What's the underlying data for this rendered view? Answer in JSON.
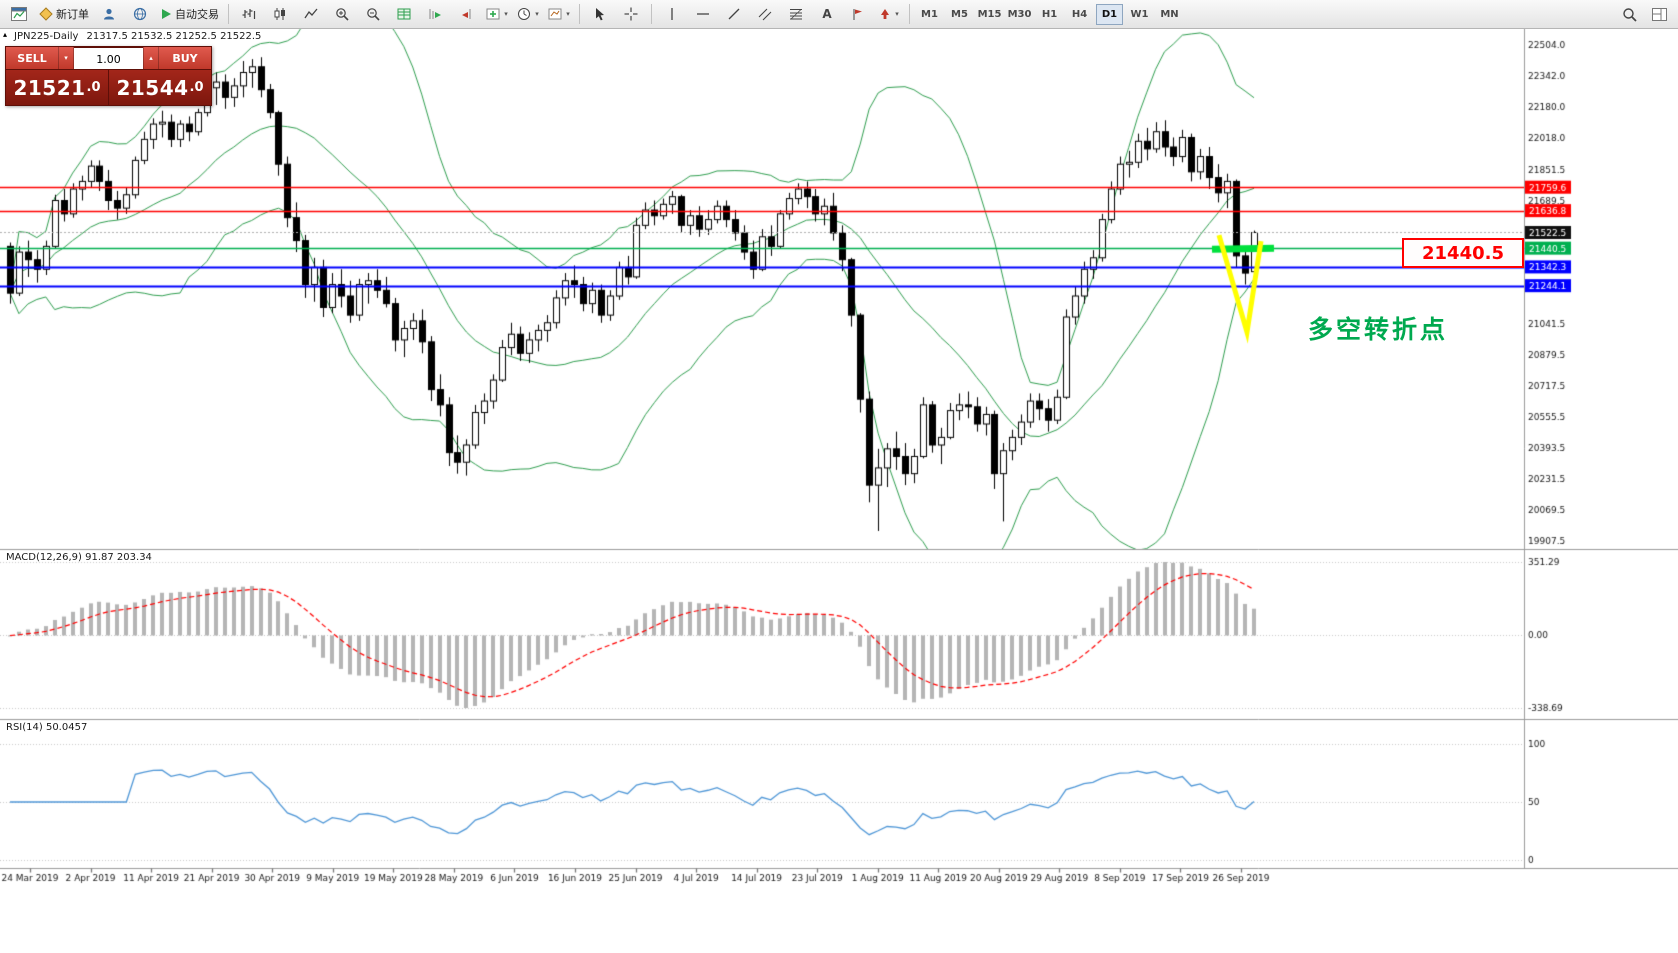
{
  "glyphs": {
    "dropdown_arrow": "▾",
    "up_arrow": "▴",
    "collapse_arrow": "▴"
  },
  "toolbar": {
    "new_order": "新订单",
    "autotrading": "自动交易",
    "text_tool": "A",
    "timeframes": [
      "M1",
      "M5",
      "M15",
      "M30",
      "H1",
      "H4",
      "D1",
      "W1",
      "MN"
    ],
    "active_timeframe": "D1",
    "icons": [
      "chart-window",
      "new-order",
      "profiles",
      "globe",
      "autotrading-play",
      "bar-chart",
      "candlestick-chart",
      "line-chart",
      "zoom-in",
      "zoom-out",
      "table-grid",
      "auto-scroll",
      "chart-shift",
      "add-indicator",
      "periods-clock",
      "chart-template",
      "cursor",
      "crosshair",
      "vertical-line",
      "horizontal-line",
      "trendline",
      "equidistant-channel",
      "fibonacci-retracement",
      "text",
      "text-label",
      "arrow-object",
      "search",
      "panels"
    ]
  },
  "trade_panel": {
    "sell_label": "SELL",
    "buy_label": "BUY",
    "volume": "1.00",
    "sell_price_main": "21521",
    "sell_price_frac": ".0",
    "buy_price_main": "21544",
    "buy_price_frac": ".0"
  },
  "chart_header": {
    "symbol": "JPN225-Daily",
    "ohlc": "21317.5 21532.5 21252.5 21522.5"
  },
  "annotations": {
    "callout": "21440.5",
    "turning_point": "多空转折点"
  },
  "chart_data": {
    "type": "candlestick",
    "symbol": "JPN225",
    "timeframe": "Daily",
    "colors": {
      "up_candle": "#ffffff",
      "down_candle": "#000000",
      "outline": "#000000",
      "bollinger": "#2f9e4f",
      "macd_histogram": "#b5b5b5",
      "macd_signal": "#ff0000",
      "rsi_line": "#4f97d7",
      "annotation_green": "#00e13c",
      "annotation_yellow": "#ffff00"
    },
    "bollinger": {
      "period": 20,
      "deviations": 2
    },
    "current_price": 21522.5,
    "hlines": [
      {
        "value": 21759.6,
        "color": "#ff0000"
      },
      {
        "value": 21636.8,
        "color": "#ff0000"
      },
      {
        "value": 21440.5,
        "color": "#00b050"
      },
      {
        "value": 21342.3,
        "color": "#0000ff"
      },
      {
        "value": 21244.1,
        "color": "#0000ff"
      }
    ],
    "y_axis_ticks": [
      22504.0,
      22342.0,
      22180.0,
      22018.0,
      21851.5,
      21689.5,
      21527.5,
      21365.5,
      21203.5,
      21041.5,
      20879.5,
      20717.5,
      20555.5,
      20393.5,
      20231.5,
      20069.5,
      19907.5
    ],
    "x_axis_dates": [
      "24 Mar 2019",
      "2 Apr 2019",
      "11 Apr 2019",
      "21 Apr 2019",
      "30 Apr 2019",
      "9 May 2019",
      "19 May 2019",
      "28 May 2019",
      "6 Jun 2019",
      "16 Jun 2019",
      "25 Jun 2019",
      "4 Jul 2019",
      "14 Jul 2019",
      "23 Jul 2019",
      "1 Aug 2019",
      "11 Aug 2019",
      "20 Aug 2019",
      "29 Aug 2019",
      "8 Sep 2019",
      "17 Sep 2019",
      "26 Sep 2019"
    ],
    "macd": {
      "label": "MACD(12,26,9) 91.87 203.34",
      "fast": 12,
      "slow": 26,
      "signal": 9,
      "macd_value": 91.87,
      "signal_value": 203.34,
      "axis_labels": [
        351.29,
        0.0,
        -338.69
      ]
    },
    "rsi": {
      "label": "RSI(14) 50.0457",
      "period": 14,
      "value": 50.0457,
      "axis_labels": [
        100,
        50,
        0
      ]
    },
    "candles": [
      [
        21450,
        21470,
        21150,
        21205
      ],
      [
        21205,
        21450,
        21190,
        21420
      ],
      [
        21420,
        21480,
        21290,
        21380
      ],
      [
        21380,
        21430,
        21260,
        21330
      ],
      [
        21330,
        21480,
        21300,
        21450
      ],
      [
        21450,
        21720,
        21440,
        21690
      ],
      [
        21690,
        21750,
        21580,
        21620
      ],
      [
        21620,
        21780,
        21600,
        21750
      ],
      [
        21750,
        21820,
        21690,
        21790
      ],
      [
        21790,
        21900,
        21760,
        21870
      ],
      [
        21870,
        21900,
        21740,
        21790
      ],
      [
        21790,
        21850,
        21640,
        21690
      ],
      [
        21690,
        21740,
        21590,
        21650
      ],
      [
        21650,
        21760,
        21620,
        21720
      ],
      [
        21720,
        21920,
        21700,
        21900
      ],
      [
        21900,
        22050,
        21880,
        22010
      ],
      [
        22010,
        22120,
        21960,
        22090
      ],
      [
        22090,
        22160,
        22020,
        22100
      ],
      [
        22100,
        22140,
        21970,
        22010
      ],
      [
        22010,
        22110,
        21970,
        22090
      ],
      [
        22090,
        22130,
        22000,
        22050
      ],
      [
        22050,
        22170,
        22030,
        22150
      ],
      [
        22150,
        22320,
        22130,
        22280
      ],
      [
        22280,
        22360,
        22190,
        22310
      ],
      [
        22310,
        22350,
        22170,
        22230
      ],
      [
        22230,
        22330,
        22180,
        22290
      ],
      [
        22290,
        22420,
        22230,
        22360
      ],
      [
        22360,
        22430,
        22280,
        22390
      ],
      [
        22390,
        22440,
        22230,
        22270
      ],
      [
        22270,
        22300,
        22120,
        22150
      ],
      [
        22150,
        22160,
        21820,
        21880
      ],
      [
        21880,
        21920,
        21550,
        21600
      ],
      [
        21600,
        21680,
        21420,
        21480
      ],
      [
        21480,
        21510,
        21180,
        21250
      ],
      [
        21250,
        21390,
        21160,
        21340
      ],
      [
        21340,
        21380,
        21080,
        21130
      ],
      [
        21130,
        21310,
        21100,
        21250
      ],
      [
        21250,
        21330,
        21130,
        21190
      ],
      [
        21190,
        21270,
        21050,
        21090
      ],
      [
        21090,
        21280,
        21060,
        21250
      ],
      [
        21250,
        21310,
        21150,
        21270
      ],
      [
        21270,
        21330,
        21180,
        21220
      ],
      [
        21220,
        21290,
        21130,
        21150
      ],
      [
        21150,
        21180,
        20900,
        20960
      ],
      [
        20960,
        21060,
        20870,
        21020
      ],
      [
        21020,
        21100,
        20960,
        21060
      ],
      [
        21060,
        21120,
        20890,
        20950
      ],
      [
        20950,
        20980,
        20640,
        20700
      ],
      [
        20700,
        20780,
        20560,
        20620
      ],
      [
        20620,
        20660,
        20300,
        20370
      ],
      [
        20370,
        20460,
        20260,
        20320
      ],
      [
        20320,
        20440,
        20250,
        20410
      ],
      [
        20410,
        20620,
        20390,
        20580
      ],
      [
        20580,
        20680,
        20520,
        20640
      ],
      [
        20640,
        20780,
        20600,
        20750
      ],
      [
        20750,
        20960,
        20740,
        20920
      ],
      [
        20920,
        21050,
        20880,
        20990
      ],
      [
        20990,
        21030,
        20850,
        20890
      ],
      [
        20890,
        21000,
        20840,
        20960
      ],
      [
        20960,
        21040,
        20900,
        21010
      ],
      [
        21010,
        21090,
        20950,
        21050
      ],
      [
        21050,
        21220,
        21020,
        21180
      ],
      [
        21180,
        21310,
        21140,
        21270
      ],
      [
        21270,
        21350,
        21180,
        21250
      ],
      [
        21250,
        21290,
        21110,
        21150
      ],
      [
        21150,
        21260,
        21100,
        21220
      ],
      [
        21220,
        21250,
        21050,
        21090
      ],
      [
        21090,
        21220,
        21060,
        21190
      ],
      [
        21190,
        21370,
        21170,
        21340
      ],
      [
        21340,
        21400,
        21250,
        21290
      ],
      [
        21290,
        21600,
        21280,
        21560
      ],
      [
        21560,
        21680,
        21540,
        21640
      ],
      [
        21640,
        21690,
        21560,
        21610
      ],
      [
        21610,
        21700,
        21590,
        21670
      ],
      [
        21670,
        21740,
        21620,
        21710
      ],
      [
        21710,
        21720,
        21520,
        21560
      ],
      [
        21560,
        21640,
        21510,
        21610
      ],
      [
        21610,
        21660,
        21500,
        21540
      ],
      [
        21540,
        21640,
        21510,
        21590
      ],
      [
        21590,
        21690,
        21570,
        21660
      ],
      [
        21660,
        21690,
        21550,
        21590
      ],
      [
        21590,
        21640,
        21480,
        21520
      ],
      [
        21520,
        21560,
        21380,
        21420
      ],
      [
        21420,
        21480,
        21280,
        21330
      ],
      [
        21330,
        21540,
        21320,
        21500
      ],
      [
        21500,
        21560,
        21400,
        21450
      ],
      [
        21450,
        21640,
        21440,
        21620
      ],
      [
        21620,
        21730,
        21590,
        21700
      ],
      [
        21700,
        21780,
        21670,
        21750
      ],
      [
        21750,
        21790,
        21650,
        21710
      ],
      [
        21710,
        21750,
        21580,
        21620
      ],
      [
        21620,
        21700,
        21560,
        21660
      ],
      [
        21660,
        21730,
        21480,
        21520
      ],
      [
        21520,
        21560,
        21320,
        21380
      ],
      [
        21380,
        21390,
        21030,
        21090
      ],
      [
        21090,
        21100,
        20580,
        20650
      ],
      [
        20650,
        20690,
        20110,
        20200
      ],
      [
        20200,
        20390,
        19960,
        20290
      ],
      [
        20290,
        20420,
        20190,
        20390
      ],
      [
        20390,
        20480,
        20280,
        20350
      ],
      [
        20350,
        20420,
        20200,
        20260
      ],
      [
        20260,
        20390,
        20210,
        20350
      ],
      [
        20350,
        20660,
        20340,
        20620
      ],
      [
        20620,
        20640,
        20370,
        20410
      ],
      [
        20410,
        20500,
        20310,
        20450
      ],
      [
        20450,
        20630,
        20440,
        20590
      ],
      [
        20590,
        20680,
        20540,
        20620
      ],
      [
        20620,
        20690,
        20550,
        20610
      ],
      [
        20610,
        20660,
        20480,
        20520
      ],
      [
        20520,
        20610,
        20460,
        20570
      ],
      [
        20570,
        20590,
        20180,
        20260
      ],
      [
        20260,
        20420,
        20010,
        20380
      ],
      [
        20380,
        20490,
        20330,
        20450
      ],
      [
        20450,
        20570,
        20410,
        20530
      ],
      [
        20530,
        20680,
        20500,
        20640
      ],
      [
        20640,
        20680,
        20540,
        20600
      ],
      [
        20600,
        20650,
        20480,
        20540
      ],
      [
        20540,
        20700,
        20520,
        20660
      ],
      [
        20660,
        21120,
        20650,
        21080
      ],
      [
        21080,
        21240,
        21040,
        21190
      ],
      [
        21190,
        21370,
        21150,
        21330
      ],
      [
        21330,
        21430,
        21280,
        21390
      ],
      [
        21390,
        21620,
        21370,
        21590
      ],
      [
        21590,
        21790,
        21570,
        21750
      ],
      [
        21750,
        21920,
        21720,
        21880
      ],
      [
        21880,
        21950,
        21810,
        21890
      ],
      [
        21890,
        22040,
        21860,
        22000
      ],
      [
        22000,
        22070,
        21900,
        21960
      ],
      [
        21960,
        22100,
        21940,
        22050
      ],
      [
        22050,
        22110,
        21920,
        21970
      ],
      [
        21970,
        22020,
        21870,
        21920
      ],
      [
        21920,
        22060,
        21890,
        22020
      ],
      [
        22020,
        22040,
        21790,
        21840
      ],
      [
        21840,
        21960,
        21800,
        21920
      ],
      [
        21920,
        21970,
        21750,
        21810
      ],
      [
        21810,
        21880,
        21680,
        21730
      ],
      [
        21730,
        21830,
        21650,
        21790
      ],
      [
        21790,
        21800,
        21340,
        21400
      ],
      [
        21400,
        21450,
        21250,
        21310
      ],
      [
        21317.5,
        21532.5,
        21252.5,
        21522.5
      ]
    ]
  }
}
